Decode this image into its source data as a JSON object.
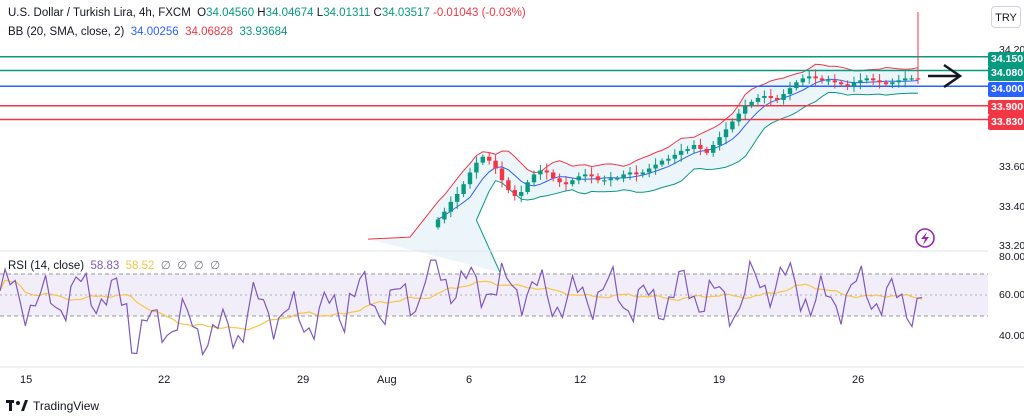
{
  "header": {
    "symbol": "U.S. Dollar / Turkish Lira, 4h, FXCM",
    "open_label": "O",
    "open": "34.04560",
    "high_label": "H",
    "high": "34.04674",
    "low_label": "L",
    "low": "34.01311",
    "close_label": "C",
    "close": "34.03517",
    "change": "-0.01043 (-0.03%)"
  },
  "bb": {
    "label": "BB (20, SMA, close, 2)",
    "basis": "34.00256",
    "upper": "34.06828",
    "lower": "33.93684"
  },
  "rsi": {
    "label": "RSI (14, close)",
    "value": "58.83",
    "ma": "58.52",
    "o1": "∅",
    "o2": "∅",
    "o3": "∅",
    "o4": "∅"
  },
  "currency_button": "TRY",
  "price_axis": {
    "ticks": [
      "34.200",
      "33.600",
      "33.400",
      "33.200"
    ]
  },
  "price_labels": [
    {
      "text": "34.150",
      "color": "#089981"
    },
    {
      "text": "34.080",
      "color": "#089981"
    },
    {
      "text": "34.000",
      "color": "#2962ff"
    },
    {
      "text": "33.900",
      "color": "#f23645"
    },
    {
      "text": "33.830",
      "color": "#f23645"
    }
  ],
  "rsi_axis": {
    "ticks": [
      "80.00",
      "60.00",
      "40.00"
    ]
  },
  "x_axis": {
    "ticks": [
      "15",
      "22",
      "29",
      "Aug",
      "6",
      "12",
      "19",
      "26"
    ]
  },
  "footer": {
    "brand": "TradingView"
  },
  "colors": {
    "bull": "#089981",
    "bear": "#f23645",
    "basis": "#2962ff",
    "rsi": "#7e57c2",
    "rsi_ma": "#f7c548",
    "arrow": "#131722"
  },
  "chart_data": {
    "type": "candlestick",
    "price_range": [
      33.2,
      34.2
    ],
    "horizontal_levels": [
      34.15,
      34.08,
      34.0,
      33.9,
      33.83
    ],
    "closes": [
      33.32,
      33.36,
      33.41,
      33.45,
      33.5,
      33.56,
      33.61,
      33.64,
      33.62,
      33.58,
      33.52,
      33.47,
      33.44,
      33.46,
      33.51,
      33.55,
      33.57,
      33.56,
      33.53,
      33.51,
      33.5,
      33.52,
      33.54,
      33.55,
      33.54,
      33.52,
      33.52,
      33.53,
      33.53,
      33.55,
      33.56,
      33.55,
      33.56,
      33.58,
      33.6,
      33.62,
      33.63,
      33.65,
      33.67,
      33.68,
      33.7,
      33.68,
      33.66,
      33.7,
      33.74,
      33.78,
      33.82,
      33.86,
      33.9,
      33.92,
      33.94,
      33.95,
      33.94,
      33.93,
      33.96,
      33.99,
      34.02,
      34.04,
      34.05,
      34.04,
      34.03,
      34.03,
      34.02,
      34.01,
      34.0,
      34.02,
      34.03,
      34.04,
      34.03,
      34.02,
      34.01,
      34.02,
      34.03,
      34.04,
      34.04,
      34.035
    ],
    "rsi": {
      "range": [
        30,
        80
      ],
      "levels": [
        70,
        50
      ]
    }
  }
}
